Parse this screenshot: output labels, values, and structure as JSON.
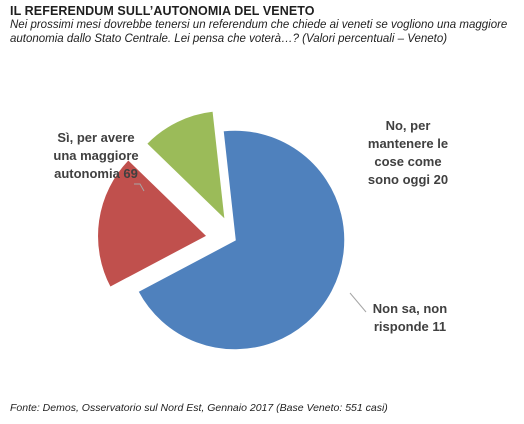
{
  "title": "IL REFERENDUM SULL’AUTONOMIA  DEL VENETO",
  "subtitle": "Nei prossimi mesi dovrebbe tenersi un referendum che chiede ai veneti se vogliono una maggiore autonomia dallo Stato Centrale. Lei pensa che voterà…? (Valori percentuali – Veneto)",
  "source": "Fonte: Demos, Osservatorio sul Nord Est, Gennaio 2017 (Base Veneto: 551 casi)",
  "chart_data": {
    "type": "pie",
    "title": "",
    "slices": [
      {
        "label_lines": [
          "Sì, per avere",
          "una maggiore",
          "autonomia 69"
        ],
        "value": 69,
        "color": "#4f81bd"
      },
      {
        "label_lines": [
          "No, per",
          "mantenere le",
          "cose come",
          "sono oggi 20"
        ],
        "value": 20,
        "color": "#c0504d"
      },
      {
        "label_lines": [
          "Non sa, non",
          "risponde 11"
        ],
        "value": 11,
        "color": "#9bbb59"
      }
    ]
  }
}
